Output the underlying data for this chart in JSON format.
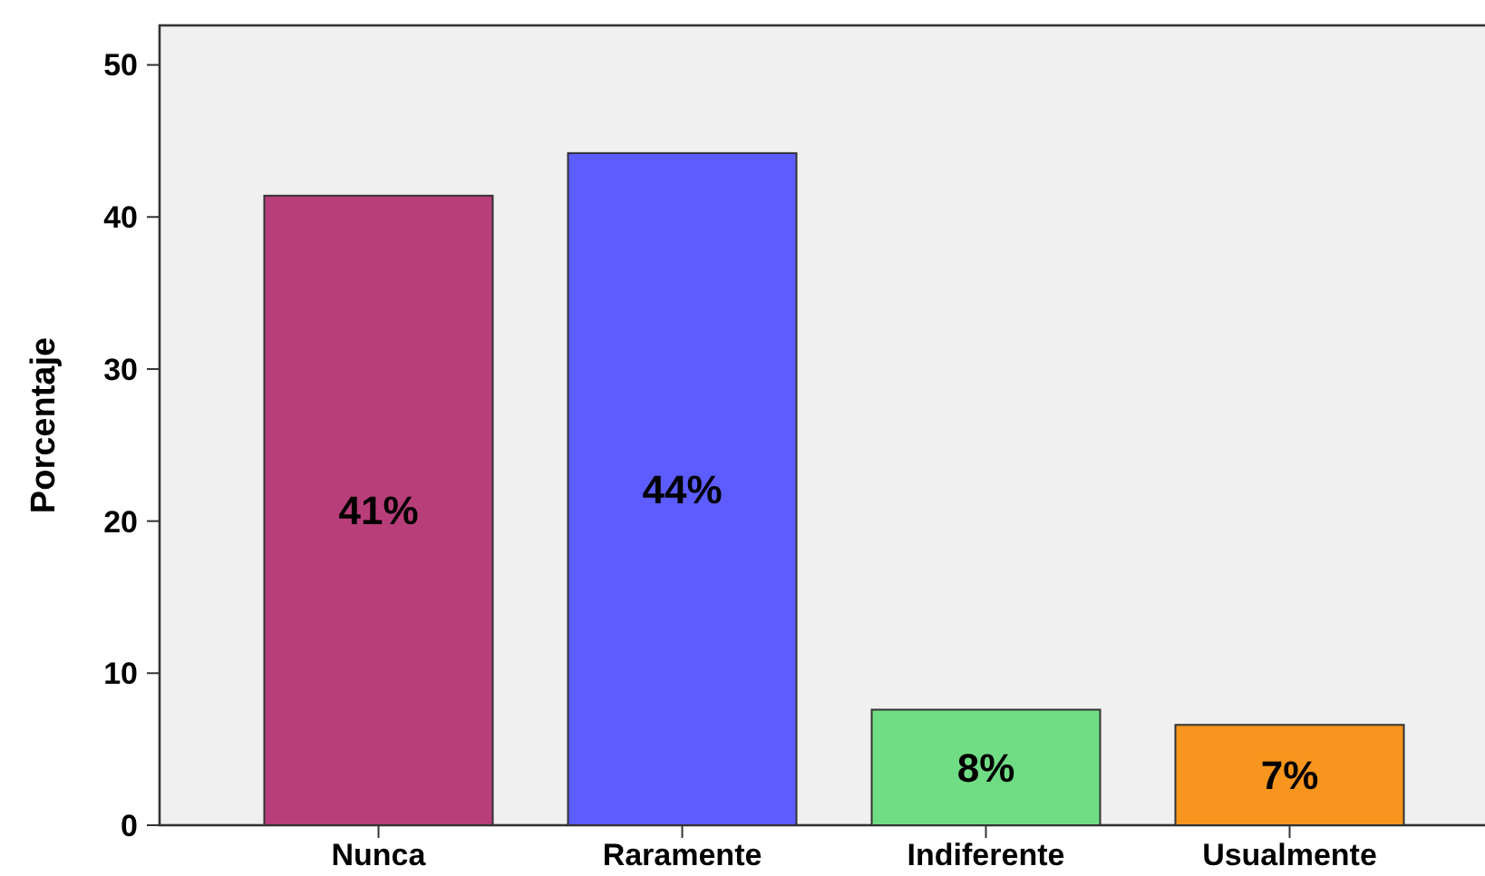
{
  "chart_data": {
    "type": "bar",
    "ylabel": "Porcentaje",
    "categories": [
      "Nunca",
      "Raramente",
      "Indiferente",
      "Usualmente"
    ],
    "values": [
      41.4,
      44.2,
      7.6,
      6.6
    ],
    "colors": [
      "#b83e7a",
      "#5c5cff",
      "#70dc84",
      "#f7951e"
    ],
    "value_labels": [
      "41%",
      "44%",
      "8%",
      "7%"
    ],
    "ylim": [
      0,
      52.6
    ],
    "yticks": [
      0,
      10,
      20,
      30,
      40,
      50
    ],
    "grid": false
  }
}
